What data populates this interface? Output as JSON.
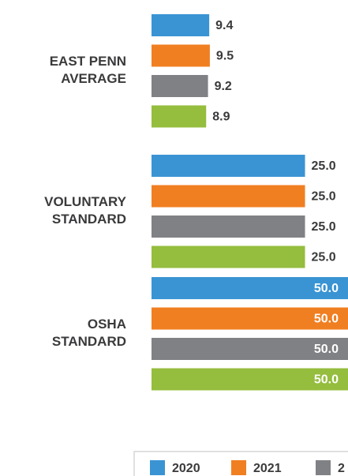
{
  "chart_data": {
    "type": "hbar",
    "categories": [
      "EAST PENN AVERAGE",
      "VOLUNTARY STANDARD",
      "OSHA STANDARD"
    ],
    "series": [
      {
        "name": "2020",
        "color": "#3a94d3",
        "values": [
          9.4,
          25,
          50
        ],
        "value_labels": [
          "9.4",
          "25.0",
          "50.0"
        ]
      },
      {
        "name": "2021",
        "color": "#f07f21",
        "values": [
          9.5,
          25,
          50
        ],
        "value_labels": [
          "9.5",
          "25.0",
          "50.0"
        ]
      },
      {
        "name": "2",
        "color": "#808184",
        "values": [
          9.2,
          25,
          50
        ],
        "value_labels": [
          "9.2",
          "25.0",
          "50.0"
        ]
      },
      {
        "name": null,
        "color": "#95bd3e",
        "values": [
          8.9,
          25,
          50
        ],
        "value_labels": [
          "8.9",
          "25.0",
          "50.0"
        ]
      }
    ],
    "xlim": [
      0,
      32
    ]
  }
}
